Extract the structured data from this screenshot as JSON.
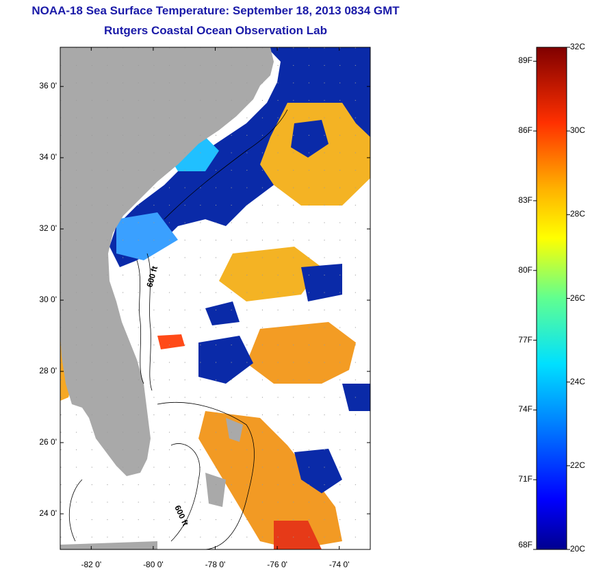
{
  "title": "NOAA-18 Sea Surface Temperature:  September 18, 2013 0834 GMT",
  "subtitle": "Rutgers Coastal Ocean Observation Lab",
  "map": {
    "lat_labels": [
      "36 0'",
      "34 0'",
      "32 0'",
      "30 0'",
      "28 0'",
      "26 0'",
      "24 0'"
    ],
    "lat_values": [
      36,
      34,
      32,
      30,
      28,
      26,
      24
    ],
    "lon_labels": [
      "-82 0'",
      "-80 0'",
      "-78 0'",
      "-76 0'",
      "-74 0'"
    ],
    "lon_values": [
      -82,
      -80,
      -78,
      -76,
      -74
    ],
    "lat_range": [
      23,
      37.1
    ],
    "lon_range": [
      -83,
      -73
    ],
    "contour_labels": [
      "600 ft",
      "600 ft"
    ],
    "colors": {
      "land": "#a9a9a9",
      "clouds": "#ffffff"
    }
  },
  "colorbar": {
    "fahrenheit": [
      "89F",
      "86F",
      "83F",
      "80F",
      "77F",
      "74F",
      "71F",
      "68F"
    ],
    "celsius": [
      "32C",
      "30C",
      "28C",
      "26C",
      "24C",
      "22C",
      "20C"
    ],
    "range_c": [
      20,
      32
    ],
    "colors": [
      "#00008f",
      "#0000ff",
      "#0060ff",
      "#00bfff",
      "#20e0d0",
      "#80ff80",
      "#e0ff20",
      "#ffd000",
      "#ff8000",
      "#ff3000",
      "#c00000",
      "#800000"
    ]
  }
}
